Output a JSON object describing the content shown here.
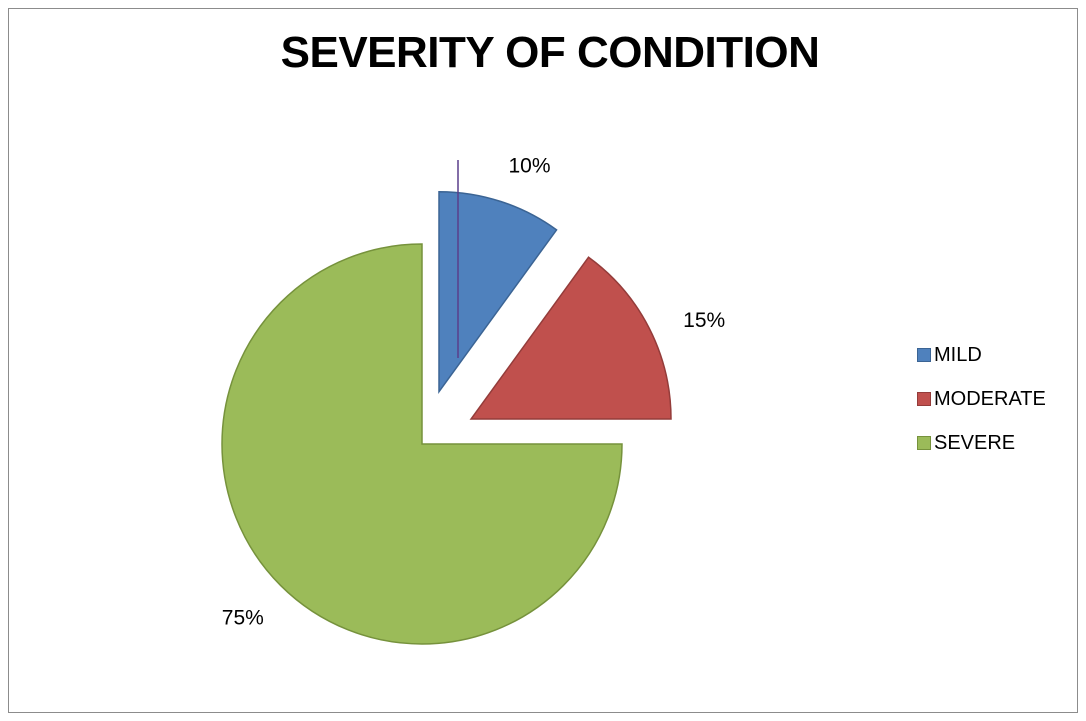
{
  "chart_data": {
    "type": "pie",
    "title": "SEVERITY OF CONDITION",
    "categories": [
      "MILD",
      "MODERATE",
      "SEVERE"
    ],
    "values": [
      10,
      15,
      75
    ],
    "data_labels": [
      "10%",
      "15%",
      "75%"
    ],
    "colors": [
      "#4f81bd",
      "#c0504d",
      "#9bbb59"
    ],
    "border_colors": [
      "#3b6494",
      "#943c3a",
      "#76923c"
    ],
    "exploded": [
      true,
      true,
      false
    ],
    "legend_position": "right"
  }
}
